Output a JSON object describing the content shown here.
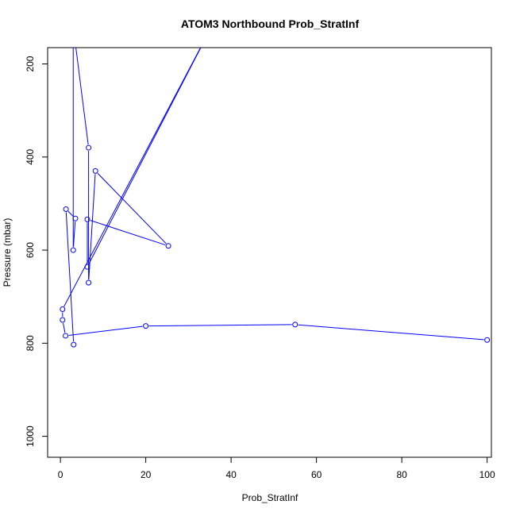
{
  "chart_data": {
    "type": "line",
    "title": "ATOM3 Northbound Prob_StratInf",
    "xlabel": "Prob_StratInf",
    "ylabel": "Pressure (mbar)",
    "xlim": [
      -3,
      101
    ],
    "ylim": [
      1045,
      165
    ],
    "y_reversed": true,
    "xticks": [
      0,
      20,
      40,
      60,
      80,
      100
    ],
    "yticks": [
      200,
      400,
      600,
      800,
      1000
    ],
    "grid": false,
    "series": [
      {
        "color": "#0000ff",
        "marker": "open-circle",
        "points": [
          {
            "x": 100,
            "y": 793
          },
          {
            "x": 55,
            "y": 760
          },
          {
            "x": 20,
            "y": 763
          },
          {
            "x": 1.2,
            "y": 784
          },
          {
            "x": 0.5,
            "y": 750
          },
          {
            "x": 0.5,
            "y": 727
          },
          {
            "x": 36,
            "y": 110
          },
          {
            "x": 6.3,
            "y": 636
          },
          {
            "x": 6.3,
            "y": 534
          },
          {
            "x": 25.3,
            "y": 591
          },
          {
            "x": 8.2,
            "y": 430
          },
          {
            "x": 6.6,
            "y": 670
          },
          {
            "x": 6.6,
            "y": 380
          },
          {
            "x": 3,
            "y": 120
          },
          {
            "x": 3,
            "y": 600
          },
          {
            "x": 3.5,
            "y": 532
          },
          {
            "x": 1.3,
            "y": 512
          },
          {
            "x": 3.1,
            "y": 803
          }
        ]
      }
    ]
  }
}
